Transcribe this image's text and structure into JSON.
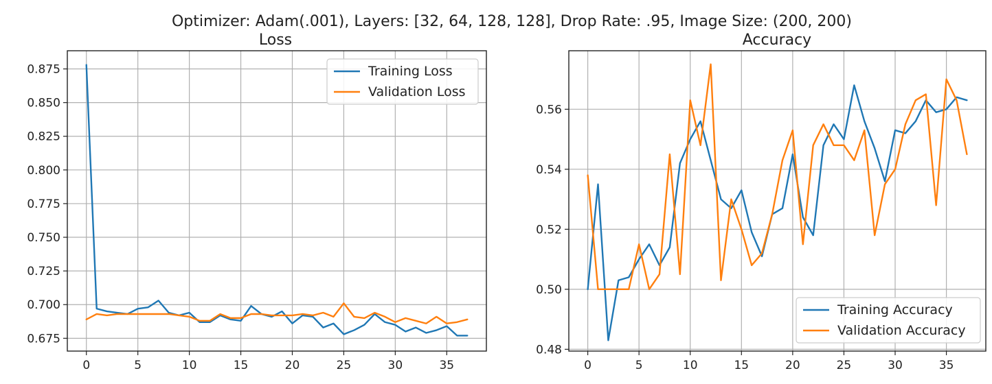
{
  "suptitle": "Optimizer: Adam(.001), Layers: [32, 64, 128, 128], Drop Rate: .95, Image Size: (200, 200)",
  "colors": {
    "training": "#1f77b4",
    "validation": "#ff7f0e",
    "grid": "#b0b0b0"
  },
  "chart_data": [
    {
      "type": "line",
      "title": "Loss",
      "xlabel": "",
      "ylabel": "",
      "xlim": [
        -1.85,
        38.85
      ],
      "ylim": [
        0.6655,
        0.8885
      ],
      "xticks": [
        0,
        5,
        10,
        15,
        20,
        25,
        30,
        35
      ],
      "yticks": [
        0.675,
        0.7,
        0.725,
        0.75,
        0.775,
        0.8,
        0.825,
        0.85,
        0.875
      ],
      "ytick_labels": [
        "0.675",
        "0.700",
        "0.725",
        "0.750",
        "0.775",
        "0.800",
        "0.825",
        "0.850",
        "0.875"
      ],
      "grid": true,
      "legend": "upper right",
      "x": [
        0,
        1,
        2,
        3,
        4,
        5,
        6,
        7,
        8,
        9,
        10,
        11,
        12,
        13,
        14,
        15,
        16,
        17,
        18,
        19,
        20,
        21,
        22,
        23,
        24,
        25,
        26,
        27,
        28,
        29,
        30,
        31,
        32,
        33,
        34,
        35,
        36,
        37
      ],
      "series": [
        {
          "name": "Training Loss",
          "color": "#1f77b4",
          "values": [
            0.878,
            0.697,
            0.695,
            0.694,
            0.693,
            0.697,
            0.698,
            0.703,
            0.694,
            0.692,
            0.694,
            0.687,
            0.687,
            0.692,
            0.689,
            0.688,
            0.699,
            0.693,
            0.691,
            0.695,
            0.686,
            0.692,
            0.691,
            0.683,
            0.686,
            0.678,
            0.681,
            0.685,
            0.693,
            0.687,
            0.685,
            0.68,
            0.683,
            0.679,
            0.681,
            0.684,
            0.677,
            0.677
          ]
        },
        {
          "name": "Validation Loss",
          "color": "#ff7f0e",
          "values": [
            0.689,
            0.693,
            0.692,
            0.693,
            0.693,
            0.693,
            0.693,
            0.693,
            0.693,
            0.692,
            0.691,
            0.688,
            0.688,
            0.693,
            0.69,
            0.69,
            0.693,
            0.693,
            0.692,
            0.692,
            0.692,
            0.693,
            0.692,
            0.694,
            0.691,
            0.701,
            0.691,
            0.69,
            0.694,
            0.691,
            0.687,
            0.69,
            0.688,
            0.686,
            0.691,
            0.686,
            0.687,
            0.689
          ]
        }
      ]
    },
    {
      "type": "line",
      "title": "Accuracy",
      "xlabel": "",
      "ylabel": "",
      "xlim": [
        -1.85,
        38.85
      ],
      "ylim": [
        0.4794,
        0.5795
      ],
      "xticks": [
        0,
        5,
        10,
        15,
        20,
        25,
        30,
        35
      ],
      "yticks": [
        0.48,
        0.5,
        0.52,
        0.54,
        0.56
      ],
      "ytick_labels": [
        "0.48",
        "0.50",
        "0.52",
        "0.54",
        "0.56"
      ],
      "grid": true,
      "legend": "lower right",
      "x": [
        0,
        1,
        2,
        3,
        4,
        5,
        6,
        7,
        8,
        9,
        10,
        11,
        12,
        13,
        14,
        15,
        16,
        17,
        18,
        19,
        20,
        21,
        22,
        23,
        24,
        25,
        26,
        27,
        28,
        29,
        30,
        31,
        32,
        33,
        34,
        35,
        36,
        37
      ],
      "series": [
        {
          "name": "Training Accuracy",
          "color": "#1f77b4",
          "values": [
            0.5,
            0.535,
            0.483,
            0.503,
            0.504,
            0.51,
            0.515,
            0.508,
            0.514,
            0.542,
            0.55,
            0.556,
            0.543,
            0.53,
            0.527,
            0.533,
            0.519,
            0.511,
            0.525,
            0.527,
            0.545,
            0.524,
            0.518,
            0.548,
            0.555,
            0.55,
            0.568,
            0.556,
            0.547,
            0.536,
            0.553,
            0.552,
            0.556,
            0.563,
            0.559,
            0.56,
            0.564,
            0.563
          ]
        },
        {
          "name": "Validation Accuracy",
          "color": "#ff7f0e",
          "values": [
            0.538,
            0.5,
            0.5,
            0.5,
            0.5,
            0.515,
            0.5,
            0.505,
            0.545,
            0.505,
            0.563,
            0.548,
            0.575,
            0.503,
            0.53,
            0.52,
            0.508,
            0.512,
            0.525,
            0.543,
            0.553,
            0.515,
            0.548,
            0.555,
            0.548,
            0.548,
            0.543,
            0.553,
            0.518,
            0.535,
            0.54,
            0.555,
            0.563,
            0.565,
            0.528,
            0.57,
            0.563,
            0.545
          ]
        }
      ]
    }
  ]
}
